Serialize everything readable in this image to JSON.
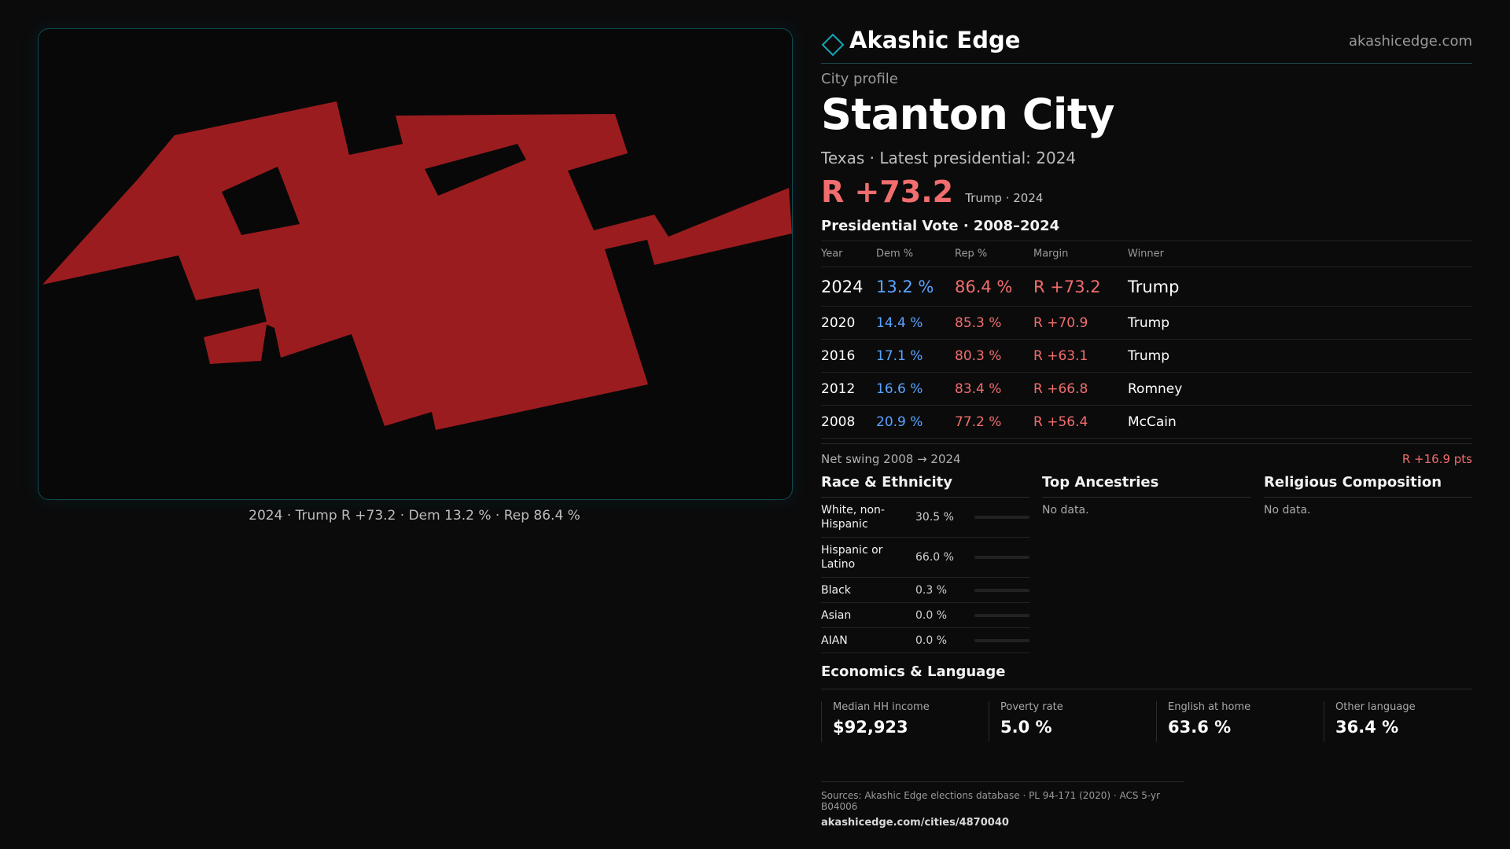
{
  "brand": {
    "name": "Akashic Edge",
    "url": "akashicedge.com",
    "accent": "#15a6b8"
  },
  "profile": {
    "eyebrow": "City profile",
    "city": "Stanton City",
    "subtitle": "Texas · Latest presidential: 2024",
    "headline_margin": "R +73.2",
    "headline_note": "Trump · 2024"
  },
  "map": {
    "caption": "2024 · Trump R +73.2 · Dem 13.2 % · Rep 86.4 %",
    "fill_color": "#9b1c1f"
  },
  "vote": {
    "title": "Presidential Vote · 2008–2024",
    "headers": {
      "year": "Year",
      "dem": "Dem %",
      "rep": "Rep %",
      "margin": "Margin",
      "winner": "Winner"
    },
    "rows": [
      {
        "year": "2024",
        "dem": "13.2 %",
        "rep": "86.4 %",
        "margin": "R +73.2",
        "winner": "Trump"
      },
      {
        "year": "2020",
        "dem": "14.4 %",
        "rep": "85.3 %",
        "margin": "R +70.9",
        "winner": "Trump"
      },
      {
        "year": "2016",
        "dem": "17.1 %",
        "rep": "80.3 %",
        "margin": "R +63.1",
        "winner": "Trump"
      },
      {
        "year": "2012",
        "dem": "16.6 %",
        "rep": "83.4 %",
        "margin": "R +66.8",
        "winner": "Romney"
      },
      {
        "year": "2008",
        "dem": "20.9 %",
        "rep": "77.2 %",
        "margin": "R +56.4",
        "winner": "McCain"
      }
    ],
    "net_swing_label": "Net swing 2008 → 2024",
    "net_swing_value": "R +16.9 pts"
  },
  "race": {
    "title": "Race & Ethnicity",
    "rows": [
      {
        "name": "White, non-Hispanic",
        "pct": "30.5 %",
        "value": 30.5,
        "color": "#8a93a6"
      },
      {
        "name": "Hispanic or Latino",
        "pct": "66.0 %",
        "value": 66.0,
        "color": "#e2a21b"
      },
      {
        "name": "Black",
        "pct": "0.3 %",
        "value": 0.3,
        "color": "#8a93a6"
      },
      {
        "name": "Asian",
        "pct": "0.0 %",
        "value": 0.0,
        "color": "#8a93a6"
      },
      {
        "name": "AIAN",
        "pct": "0.0 %",
        "value": 0.0,
        "color": "#8a93a6"
      }
    ]
  },
  "ancestries": {
    "title": "Top Ancestries",
    "empty": "No data."
  },
  "religion": {
    "title": "Religious Composition",
    "empty": "No data."
  },
  "economics": {
    "title": "Economics & Language",
    "stats": [
      {
        "label": "Median HH income",
        "value": "$92,923"
      },
      {
        "label": "Poverty rate",
        "value": "5.0 %"
      },
      {
        "label": "English at home",
        "value": "63.6 %"
      },
      {
        "label": "Other language",
        "value": "36.4 %"
      }
    ]
  },
  "footer": {
    "sources": "Sources: Akashic Edge elections database · PL 94-171 (2020) · ACS 5-yr B04006",
    "link": "akashicedge.com/cities/4870040"
  }
}
